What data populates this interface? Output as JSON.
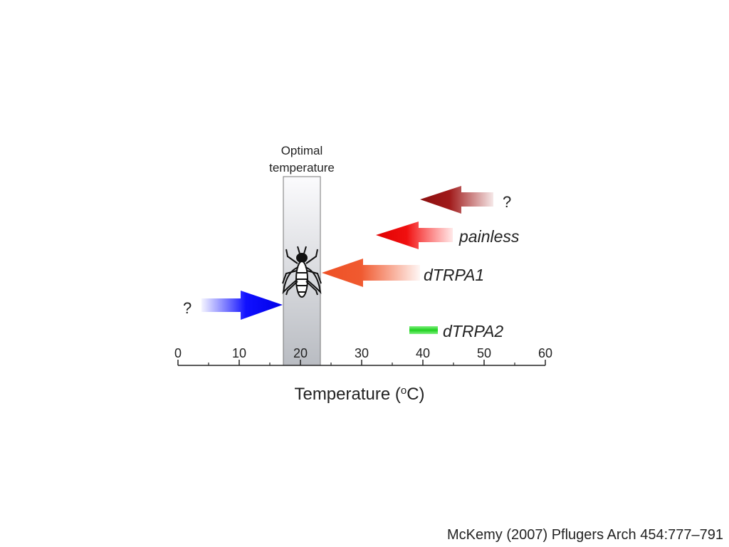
{
  "figure": {
    "optimal_label": [
      "Optimal",
      "temperature"
    ],
    "arrow_labels": {
      "unknown_heat": "?",
      "painless": "painless",
      "dtrpa1": "dTRPA1",
      "unknown_cold": "?",
      "dtrpa2": "dTRPA2"
    },
    "axis": {
      "ticks": [
        "0",
        "10",
        "20",
        "30",
        "40",
        "50",
        "60"
      ],
      "title": {
        "before": "Temperature (",
        "sup": "o",
        "after": "C)"
      }
    }
  },
  "citation": "McKemy (2007) Pflugers Arch 454:777–791"
}
